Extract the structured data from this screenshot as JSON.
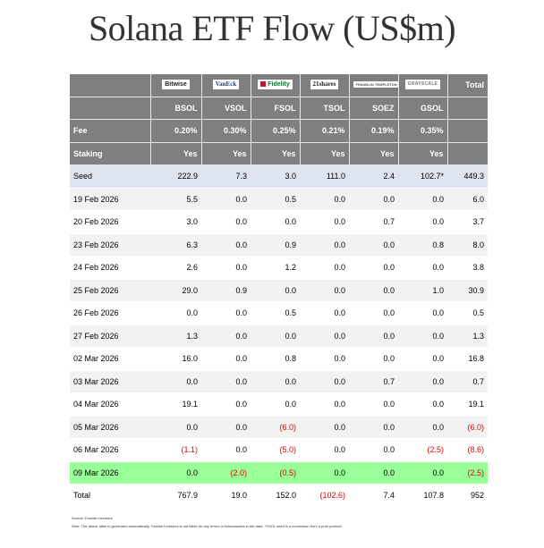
{
  "title": "Solana ETF Flow (US$m)",
  "issuers": [
    "Bitwise",
    "VanEck",
    "Fidelity",
    "21shares",
    "FRANKLIN TEMPLETON",
    "GRAYSCALE"
  ],
  "header": {
    "total_label": "Total",
    "tickers": [
      "BSOL",
      "VSOL",
      "FSOL",
      "TSOL",
      "SOEZ",
      "GSOL"
    ],
    "fee_label": "Fee",
    "fees": [
      "0.20%",
      "0.30%",
      "0.25%",
      "0.21%",
      "0.19%",
      "0.35%"
    ],
    "staking_label": "Staking",
    "staking": [
      "Yes",
      "Yes",
      "Yes",
      "Yes",
      "Yes",
      "Yes"
    ]
  },
  "rows": [
    {
      "label": "Seed",
      "values": [
        "222.9",
        "7.3",
        "3.0",
        "111.0",
        "2.4",
        "102.7*",
        "449.3"
      ]
    },
    {
      "label": "19 Feb 2026",
      "values": [
        "5.5",
        "0.0",
        "0.5",
        "0.0",
        "0.0",
        "0.0",
        "6.0"
      ]
    },
    {
      "label": "20 Feb 2026",
      "values": [
        "3.0",
        "0.0",
        "0.0",
        "0.0",
        "0.7",
        "0.0",
        "3.7"
      ]
    },
    {
      "label": "23 Feb 2026",
      "values": [
        "6.3",
        "0.0",
        "0.9",
        "0.0",
        "0.0",
        "0.8",
        "8.0"
      ]
    },
    {
      "label": "24 Feb 2026",
      "values": [
        "2.6",
        "0.0",
        "1.2",
        "0.0",
        "0.0",
        "0.0",
        "3.8"
      ]
    },
    {
      "label": "25 Feb 2026",
      "values": [
        "29.0",
        "0.9",
        "0.0",
        "0.0",
        "0.0",
        "1.0",
        "30.9"
      ]
    },
    {
      "label": "26 Feb 2026",
      "values": [
        "0.0",
        "0.0",
        "0.5",
        "0.0",
        "0.0",
        "0.0",
        "0.5"
      ]
    },
    {
      "label": "27 Feb 2026",
      "values": [
        "1.3",
        "0.0",
        "0.0",
        "0.0",
        "0.0",
        "0.0",
        "1.3"
      ]
    },
    {
      "label": "02 Mar 2026",
      "values": [
        "16.0",
        "0.0",
        "0.8",
        "0.0",
        "0.0",
        "0.0",
        "16.8"
      ]
    },
    {
      "label": "03 Mar 2026",
      "values": [
        "0.0",
        "0.0",
        "0.0",
        "0.0",
        "0.7",
        "0.0",
        "0.7"
      ]
    },
    {
      "label": "04 Mar 2026",
      "values": [
        "19.1",
        "0.0",
        "0.0",
        "0.0",
        "0.0",
        "0.0",
        "19.1"
      ]
    },
    {
      "label": "05 Mar 2026",
      "values": [
        "0.0",
        "0.0",
        "(6.0)",
        "0.0",
        "0.0",
        "0.0",
        "(6.0)"
      ]
    },
    {
      "label": "06 Mar 2026",
      "values": [
        "(1.1)",
        "0.0",
        "(5.0)",
        "0.0",
        "0.0",
        "(2.5)",
        "(8.6)"
      ]
    },
    {
      "label": "09 Mar 2026",
      "values": [
        "0.0",
        "(2.0)",
        "(0.5)",
        "0.0",
        "0.0",
        "0.0",
        "(2.5)"
      ]
    }
  ],
  "total_row": {
    "label": "Total",
    "values": [
      "767.9",
      "19.0",
      "152.0",
      "(102.6)",
      "7.4",
      "107.8",
      "952"
    ]
  },
  "colors": {
    "header_bg": "#7f7f7f",
    "highlight_row": "#99ff99",
    "seed_row": "#dde4f0",
    "negative": "#e00000"
  },
  "footnotes": {
    "source": "Source: Farside Investors",
    "note": "Note: The above table is generated automatically, Farside Investors is not liable for any errors or inaccuracies in the data. *GSOL seed is a conversion from a prior product"
  }
}
